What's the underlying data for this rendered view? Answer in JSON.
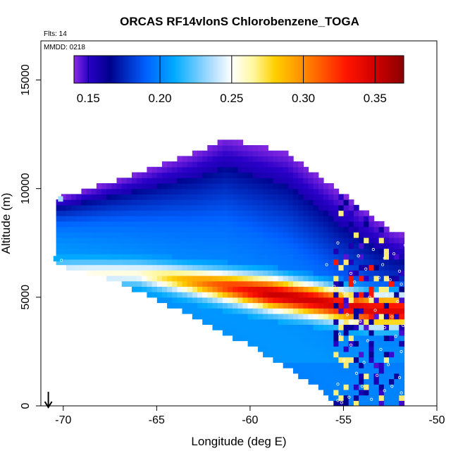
{
  "chart_data": {
    "type": "heatmap",
    "title": "ORCAS RF14vlonS Chlorobenzene_TOGA",
    "flts_label": "Flts: 14",
    "mmdd_label": "MMDD: 0218",
    "xlabel": "Longitude (deg E)",
    "ylabel": "Altitude (m)",
    "xlim": [
      -71.2,
      -50
    ],
    "ylim": [
      0,
      16800
    ],
    "x_ticks": [
      -70,
      -65,
      -60,
      -55,
      -50
    ],
    "x_tick_labels": [
      "-70",
      "-65",
      "-60",
      "-55",
      "-50"
    ],
    "y_ticks": [
      0,
      5000,
      10000,
      15000
    ],
    "y_tick_labels": [
      "0",
      "5000",
      "10000",
      "15000"
    ],
    "colorbar": {
      "range": [
        0.14,
        0.37
      ],
      "ticks": [
        0.15,
        0.2,
        0.25,
        0.3,
        0.35
      ],
      "tick_labels": [
        "0.15",
        "0.20",
        "0.25",
        "0.30",
        "0.35"
      ],
      "stops": [
        {
          "v": 0.14,
          "c": "#8a2be2"
        },
        {
          "v": 0.15,
          "c": "#2a00c8"
        },
        {
          "v": 0.165,
          "c": "#00008c"
        },
        {
          "v": 0.19,
          "c": "#0060ff"
        },
        {
          "v": 0.21,
          "c": "#00aaff"
        },
        {
          "v": 0.235,
          "c": "#a8dcff"
        },
        {
          "v": 0.25,
          "c": "#ffffff"
        },
        {
          "v": 0.265,
          "c": "#fff8a0"
        },
        {
          "v": 0.28,
          "c": "#ffd000"
        },
        {
          "v": 0.3,
          "c": "#ff8c00"
        },
        {
          "v": 0.33,
          "c": "#ff1500"
        },
        {
          "v": 0.35,
          "c": "#d00000"
        },
        {
          "v": 0.37,
          "c": "#8b0000"
        }
      ]
    },
    "field": {
      "description": "gridded chlorobenzene mixing ratio vs longitude and altitude",
      "top_boundary": [
        [
          -70.1,
          9500
        ],
        [
          -67,
          10300
        ],
        [
          -63,
          11500
        ],
        [
          -61.3,
          12200
        ],
        [
          -58,
          11500
        ],
        [
          -55,
          9600
        ],
        [
          -52.5,
          8000
        ],
        [
          -51.5,
          7700
        ]
      ],
      "bottom_boundary": [
        [
          -70.1,
          6600
        ],
        [
          -67,
          5800
        ],
        [
          -64,
          4600
        ],
        [
          -60,
          2900
        ],
        [
          -56,
          800
        ],
        [
          -55.2,
          0
        ]
      ],
      "right_longitude": -51.8,
      "tongue_axis": [
        [
          -66,
          6000
        ],
        [
          -63,
          5600
        ],
        [
          -60,
          5200
        ],
        [
          -57,
          4800
        ],
        [
          -55,
          4500
        ],
        [
          -53.5,
          4300
        ]
      ],
      "tongue_peak_value": 0.36
    },
    "sample_points": [
      [
        -70.1,
        6700
      ],
      [
        -55.3,
        7500
      ],
      [
        -54.2,
        6900
      ],
      [
        -53.4,
        7200
      ],
      [
        -52.8,
        6800
      ],
      [
        -52.3,
        7000
      ],
      [
        -51.7,
        7400
      ],
      [
        -55.9,
        6500
      ],
      [
        -54.6,
        6100
      ],
      [
        -53.8,
        6300
      ],
      [
        -52.9,
        6500
      ],
      [
        -52.0,
        6200
      ],
      [
        -55.5,
        5500
      ],
      [
        -54.4,
        5700
      ],
      [
        -53.1,
        5900
      ],
      [
        -52.5,
        5800
      ],
      [
        -51.9,
        5600
      ],
      [
        -55.0,
        5200
      ],
      [
        -53.6,
        5000
      ],
      [
        -52.7,
        5100
      ],
      [
        -52.1,
        4800
      ],
      [
        -54.8,
        4200
      ],
      [
        -53.3,
        4400
      ],
      [
        -52.4,
        4100
      ],
      [
        -51.8,
        3700
      ],
      [
        -54.1,
        3900
      ],
      [
        -52.8,
        3600
      ],
      [
        -55.2,
        3300
      ],
      [
        -53.7,
        3000
      ],
      [
        -52.2,
        3200
      ],
      [
        -54.6,
        2800
      ],
      [
        -53.0,
        2600
      ],
      [
        -51.9,
        2500
      ],
      [
        -55.0,
        2100
      ],
      [
        -53.9,
        2000
      ],
      [
        -52.6,
        1900
      ],
      [
        -54.3,
        1500
      ],
      [
        -53.2,
        1400
      ],
      [
        -52.0,
        1300
      ],
      [
        -55.3,
        1000
      ],
      [
        -54.0,
        900
      ],
      [
        -52.8,
        700
      ],
      [
        -51.9,
        600
      ],
      [
        -54.7,
        400
      ],
      [
        -53.5,
        300
      ],
      [
        -55.1,
        150
      ],
      [
        -55.3,
        250
      ],
      [
        -52.4,
        900
      ]
    ],
    "flight_track": [
      [
        -55.2,
        100
      ],
      [
        -53.8,
        700
      ],
      [
        -52.8,
        1200
      ],
      [
        -52.0,
        2000
      ],
      [
        -51.9,
        3500
      ],
      [
        -52.3,
        5000
      ],
      [
        -52.9,
        6200
      ],
      [
        -51.8,
        7300
      ]
    ],
    "arrow_longitude": -70.8
  }
}
